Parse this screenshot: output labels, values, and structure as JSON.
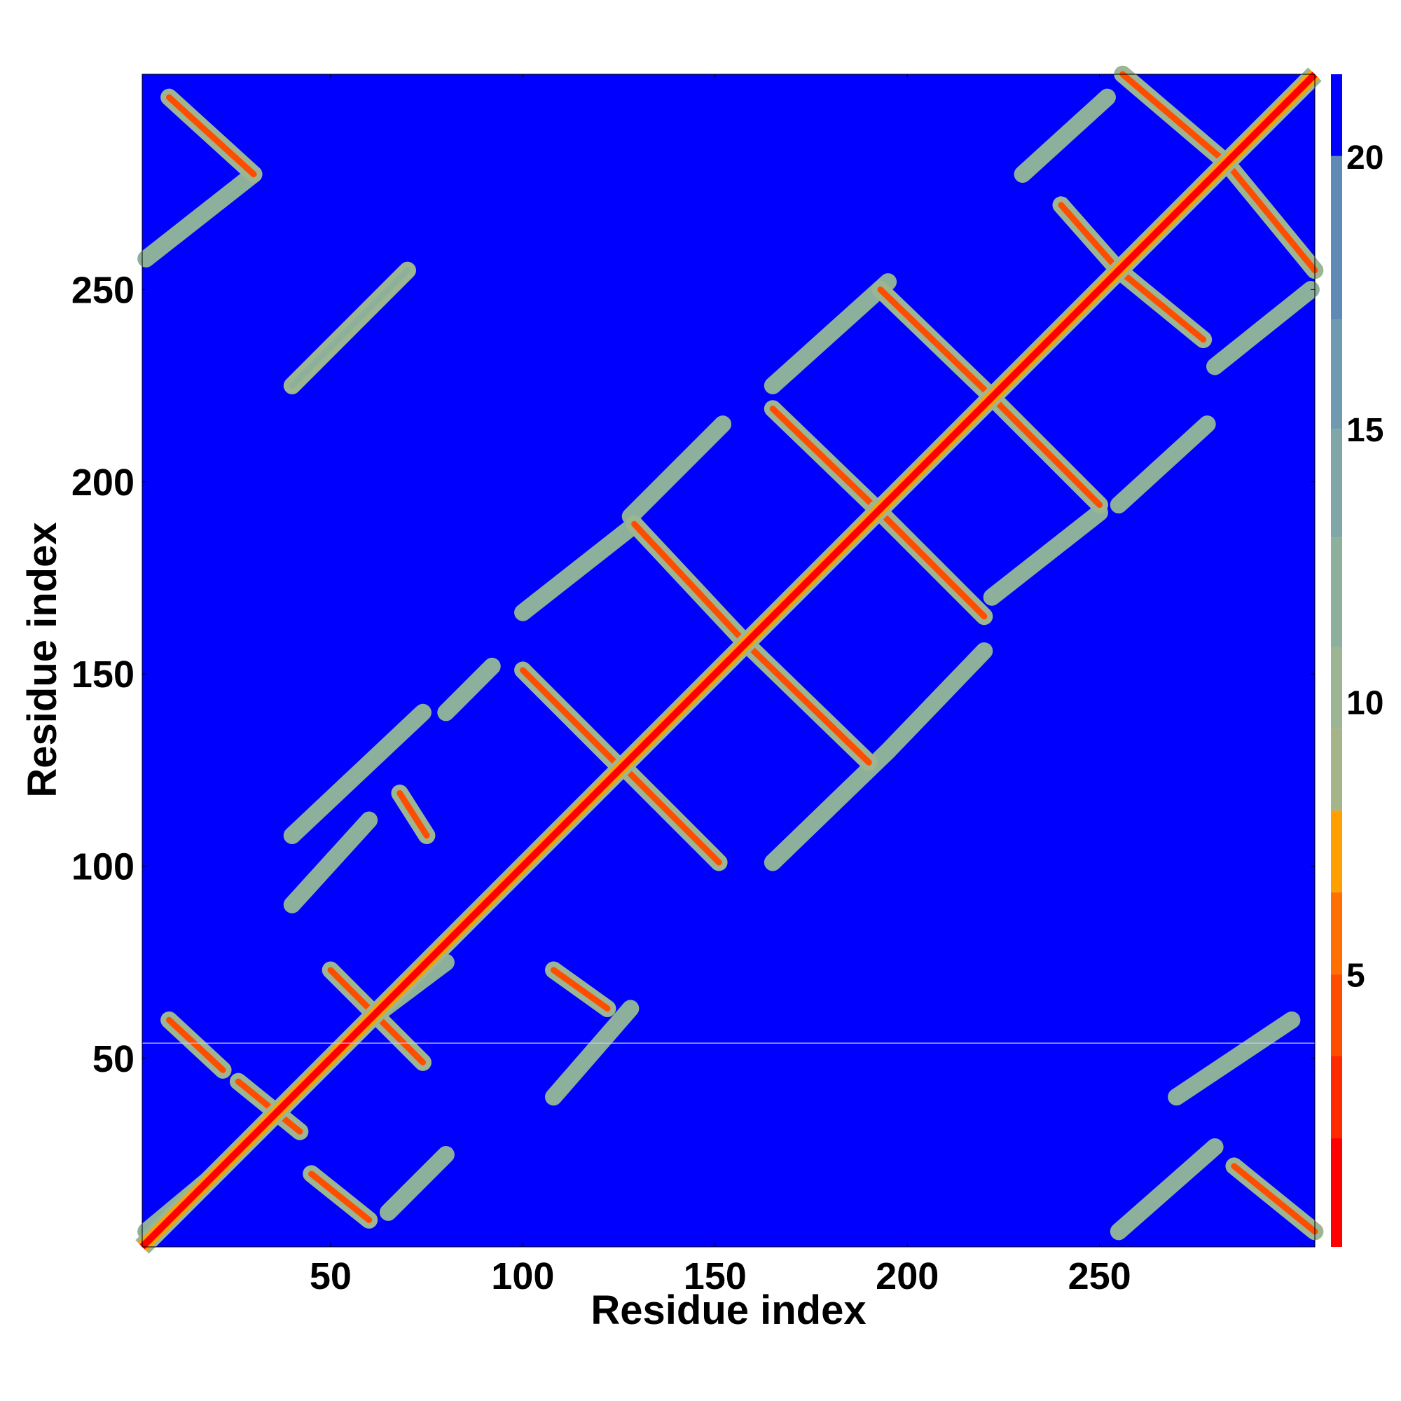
{
  "chart_data": {
    "type": "heatmap",
    "title": "",
    "xlabel": "Residue index",
    "ylabel": "Residue index",
    "xlim": [
      1,
      306
    ],
    "ylim": [
      1,
      306
    ],
    "x_ticks": [
      50,
      100,
      150,
      200,
      250
    ],
    "y_ticks": [
      50,
      100,
      150,
      200,
      250
    ],
    "colorbar": {
      "ticks": [
        5,
        10,
        15,
        20
      ],
      "range": [
        0,
        21.5
      ],
      "colors": [
        {
          "max": 2,
          "color": "#ff0000"
        },
        {
          "max": 3.5,
          "color": "#ff2a00"
        },
        {
          "max": 5,
          "color": "#ff4d00"
        },
        {
          "max": 6.5,
          "color": "#ff7000"
        },
        {
          "max": 8,
          "color": "#ffa000"
        },
        {
          "max": 9.5,
          "color": "#a6b48a"
        },
        {
          "max": 11,
          "color": "#9cb592"
        },
        {
          "max": 13,
          "color": "#8db09c"
        },
        {
          "max": 15,
          "color": "#80a7a8"
        },
        {
          "max": 17,
          "color": "#709ab0"
        },
        {
          "max": 20,
          "color": "#5f8ab8"
        },
        {
          "max": 21.5,
          "color": "#0000ff"
        }
      ]
    },
    "background_color": "#0000ff",
    "main_diagonal": {
      "from": 1,
      "to": 306,
      "value": 1
    },
    "anti_diagonal_bands": [
      {
        "x": [
          8,
          30
        ],
        "y": [
          300,
          280
        ],
        "value": 5
      },
      {
        "x": [
          40,
          70
        ],
        "y": [
          225,
          255
        ],
        "value": 12
      },
      {
        "x": [
          8,
          22
        ],
        "y": [
          60,
          47
        ],
        "value": 5
      },
      {
        "x": [
          50,
          74
        ],
        "y": [
          73,
          49
        ],
        "value": 5
      },
      {
        "x": [
          68,
          75
        ],
        "y": [
          119,
          108
        ],
        "value": 5
      },
      {
        "x": [
          100,
          125
        ],
        "y": [
          151,
          126
        ],
        "value": 5
      },
      {
        "x": [
          126,
          151
        ],
        "y": [
          126,
          101
        ],
        "value": 5
      },
      {
        "x": [
          108,
          122
        ],
        "y": [
          73,
          63
        ],
        "value": 5
      },
      {
        "x": [
          129,
          158
        ],
        "y": [
          189,
          158
        ],
        "value": 5
      },
      {
        "x": [
          158,
          190
        ],
        "y": [
          158,
          127
        ],
        "value": 5
      },
      {
        "x": [
          165,
          192
        ],
        "y": [
          219,
          193
        ],
        "value": 5
      },
      {
        "x": [
          192,
          220
        ],
        "y": [
          193,
          165
        ],
        "value": 5
      },
      {
        "x": [
          193,
          220
        ],
        "y": [
          250,
          224
        ],
        "value": 5
      },
      {
        "x": [
          222,
          250
        ],
        "y": [
          222,
          194
        ],
        "value": 5
      },
      {
        "x": [
          240,
          255
        ],
        "y": [
          272,
          255
        ],
        "value": 5
      },
      {
        "x": [
          255,
          277
        ],
        "y": [
          255,
          237
        ],
        "value": 5
      },
      {
        "x": [
          256,
          283
        ],
        "y": [
          306,
          283
        ],
        "value": 5
      },
      {
        "x": [
          283,
          306
        ],
        "y": [
          283,
          255
        ],
        "value": 5
      },
      {
        "x": [
          285,
          306
        ],
        "y": [
          22,
          5
        ],
        "value": 5
      },
      {
        "x": [
          45,
          60
        ],
        "y": [
          20,
          8
        ],
        "value": 5
      },
      {
        "x": [
          26,
          42
        ],
        "y": [
          44,
          31
        ],
        "value": 5
      }
    ],
    "parallel_bands": [
      {
        "x": [
          2,
          30
        ],
        "y": [
          258,
          280
        ],
        "value": 12
      },
      {
        "x": [
          40,
          74
        ],
        "y": [
          108,
          140
        ],
        "value": 12
      },
      {
        "x": [
          80,
          92
        ],
        "y": [
          140,
          152
        ],
        "value": 12
      },
      {
        "x": [
          100,
          128
        ],
        "y": [
          166,
          188
        ],
        "value": 12
      },
      {
        "x": [
          128,
          152
        ],
        "y": [
          191,
          215
        ],
        "value": 12
      },
      {
        "x": [
          165,
          195
        ],
        "y": [
          101,
          130
        ],
        "value": 12
      },
      {
        "x": [
          195,
          220
        ],
        "y": [
          130,
          156
        ],
        "value": 12
      },
      {
        "x": [
          40,
          60
        ],
        "y": [
          90,
          112
        ],
        "value": 12
      },
      {
        "x": [
          60,
          80
        ],
        "y": [
          60,
          75
        ],
        "value": 12
      },
      {
        "x": [
          165,
          195
        ],
        "y": [
          225,
          252
        ],
        "value": 12
      },
      {
        "x": [
          230,
          252
        ],
        "y": [
          280,
          300
        ],
        "value": 12
      },
      {
        "x": [
          222,
          250
        ],
        "y": [
          170,
          192
        ],
        "value": 12
      },
      {
        "x": [
          255,
          278
        ],
        "y": [
          194,
          215
        ],
        "value": 12
      },
      {
        "x": [
          280,
          305
        ],
        "y": [
          230,
          250
        ],
        "value": 12
      },
      {
        "x": [
          108,
          128
        ],
        "y": [
          40,
          63
        ],
        "value": 12
      },
      {
        "x": [
          65,
          80
        ],
        "y": [
          10,
          25
        ],
        "value": 12
      },
      {
        "x": [
          270,
          300
        ],
        "y": [
          40,
          60
        ],
        "value": 12
      },
      {
        "x": [
          255,
          280
        ],
        "y": [
          5,
          27
        ],
        "value": 12
      },
      {
        "x": [
          2,
          20
        ],
        "y": [
          5,
          20
        ],
        "value": 12
      }
    ],
    "grid": false,
    "legend": "colorbar-right"
  }
}
